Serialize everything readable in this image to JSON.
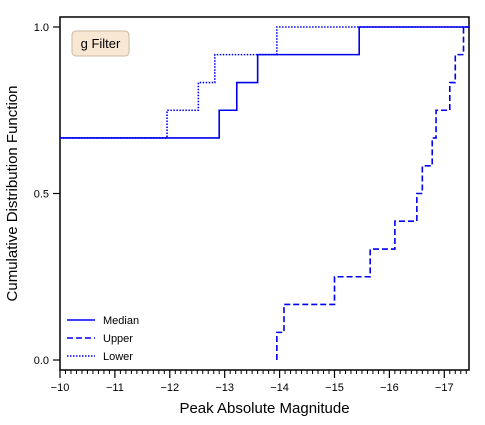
{
  "chart_data": {
    "type": "line",
    "subtype": "step-cdf",
    "xlabel": "Peak Absolute Magnitude",
    "ylabel": "Cumulative Distribution Function",
    "xlim": [
      -10,
      -17.45
    ],
    "ylim": [
      -0.03,
      1.03
    ],
    "x_inverted": true,
    "x_major_ticks": [
      -10,
      -11,
      -12,
      -13,
      -14,
      -15,
      -16,
      -17
    ],
    "x_tick_labels": [
      "−10",
      "−11",
      "−12",
      "−13",
      "−14",
      "−15",
      "−16",
      "−17"
    ],
    "x_minor_step": 0.1,
    "y_ticks": [
      0.0,
      0.5,
      1.0
    ],
    "y_tick_labels": [
      "0.0",
      "0.5",
      "1.0"
    ],
    "grid": false,
    "legend_position": "bottom-left",
    "annotation": "g Filter",
    "annotation_position": "top-left",
    "series": [
      {
        "name": "Median",
        "style": "solid",
        "color": "#0000ee",
        "x": [
          -10.0,
          -12.9,
          -12.9,
          -13.22,
          -13.22,
          -13.6,
          -13.6,
          -15.45,
          -15.45,
          -17.45
        ],
        "y": [
          0.667,
          0.667,
          0.75,
          0.75,
          0.833,
          0.833,
          0.917,
          0.917,
          1.0,
          1.0
        ]
      },
      {
        "name": "Upper",
        "style": "dashed",
        "color": "#0000ee",
        "x": [
          -13.95,
          -13.95,
          -14.08,
          -14.08,
          -15.0,
          -15.0,
          -15.65,
          -15.65,
          -16.1,
          -16.1,
          -16.5,
          -16.5,
          -16.6,
          -16.6,
          -16.78,
          -16.78,
          -16.85,
          -16.85,
          -17.1,
          -17.1,
          -17.2,
          -17.2,
          -17.35,
          -17.35,
          -17.45
        ],
        "y": [
          0.0,
          0.083,
          0.083,
          0.167,
          0.167,
          0.25,
          0.25,
          0.333,
          0.333,
          0.417,
          0.417,
          0.5,
          0.5,
          0.583,
          0.583,
          0.667,
          0.667,
          0.75,
          0.75,
          0.833,
          0.833,
          0.917,
          0.917,
          1.0,
          1.0
        ]
      },
      {
        "name": "Lower",
        "style": "dotted",
        "color": "#0000ee",
        "x": [
          -10.0,
          -11.95,
          -11.95,
          -12.52,
          -12.52,
          -12.82,
          -12.82,
          -13.95,
          -13.95,
          -17.45
        ],
        "y": [
          0.667,
          0.667,
          0.75,
          0.75,
          0.833,
          0.833,
          0.917,
          0.917,
          1.0,
          1.0
        ]
      }
    ]
  }
}
